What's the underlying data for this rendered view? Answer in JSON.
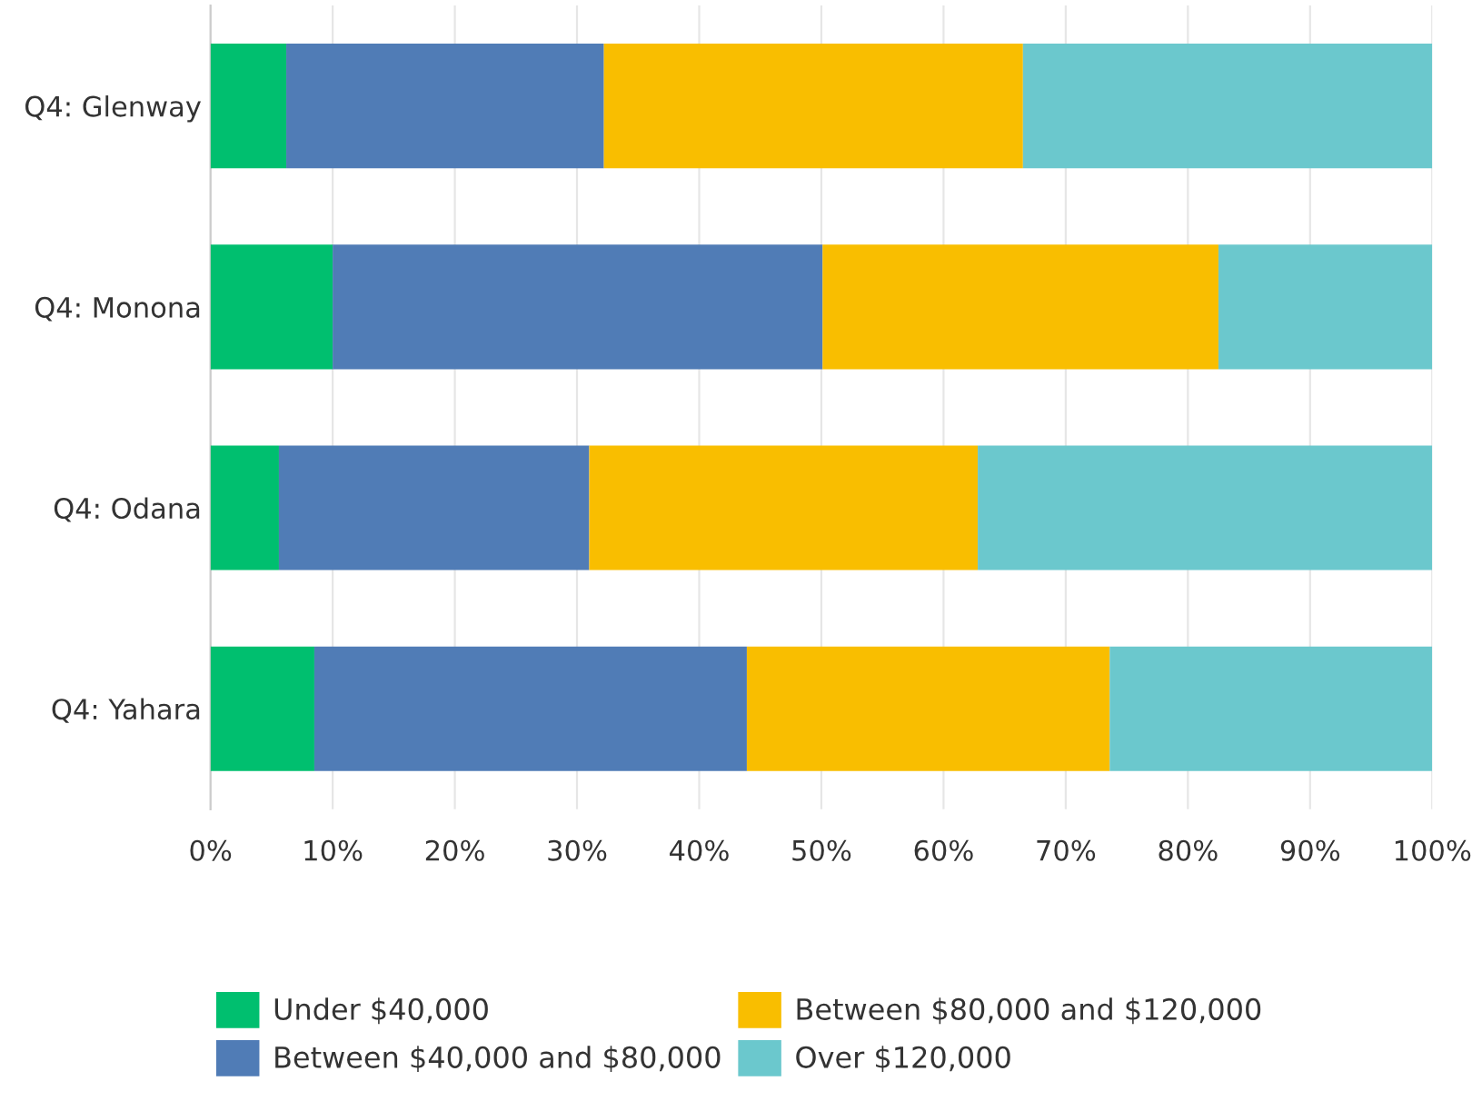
{
  "chart_data": {
    "type": "bar",
    "orientation": "horizontal",
    "stacked": true,
    "categories": [
      "Q4: Glenway",
      "Q4: Monona",
      "Q4: Odana",
      "Q4: Yahara"
    ],
    "series": [
      {
        "name": "Under $40,000",
        "color": "#00bf6f",
        "values": [
          6.2,
          10.0,
          5.6,
          8.5
        ]
      },
      {
        "name": "Between $40,000 and $80,000",
        "color": "#507cb6",
        "values": [
          26.0,
          40.1,
          25.4,
          35.4
        ]
      },
      {
        "name": "Between $80,000 and $120,000",
        "color": "#f9be00",
        "values": [
          34.3,
          32.4,
          31.8,
          29.7
        ]
      },
      {
        "name": "Over $120,000",
        "color": "#6bc8cd",
        "values": [
          33.5,
          17.5,
          37.2,
          26.4
        ]
      }
    ],
    "xlim": [
      0,
      100
    ],
    "xticks": [
      {
        "value": 0,
        "label": "0%"
      },
      {
        "value": 10,
        "label": "10%"
      },
      {
        "value": 20,
        "label": "20%"
      },
      {
        "value": 30,
        "label": "30%"
      },
      {
        "value": 40,
        "label": "40%"
      },
      {
        "value": 50,
        "label": "50%"
      },
      {
        "value": 60,
        "label": "60%"
      },
      {
        "value": 70,
        "label": "70%"
      },
      {
        "value": 80,
        "label": "80%"
      },
      {
        "value": 90,
        "label": "90%"
      },
      {
        "value": 100,
        "label": "100%"
      }
    ],
    "grid": "x",
    "legend": "bottom left"
  }
}
